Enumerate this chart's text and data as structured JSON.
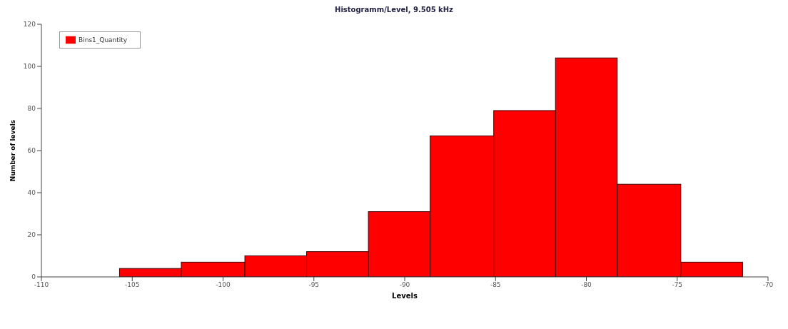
{
  "chart_data": {
    "type": "histogram",
    "title": "Histogramm/Level, 9.505 kHz",
    "xlabel": "Levels",
    "ylabel": "Number of levels",
    "bins": [
      -105.7,
      -102.3,
      -98.8,
      -95.4,
      -92.0,
      -88.6,
      -85.1,
      -81.7,
      -78.3,
      -74.8,
      -71.4
    ],
    "series": [
      {
        "name": "Bins1_Quantity",
        "color": "#ff0000",
        "values": [
          4,
          7,
          10,
          12,
          31,
          67,
          79,
          104,
          44,
          7
        ]
      }
    ],
    "xlim": [
      -110,
      -70
    ],
    "xticks": [
      -110,
      -105,
      -100,
      -95,
      -90,
      -85,
      -80,
      -75,
      -70
    ],
    "ylim": [
      0,
      120
    ],
    "yticks": [
      0,
      20,
      40,
      60,
      80,
      100,
      120
    ],
    "grid": false,
    "legend": "top left"
  }
}
